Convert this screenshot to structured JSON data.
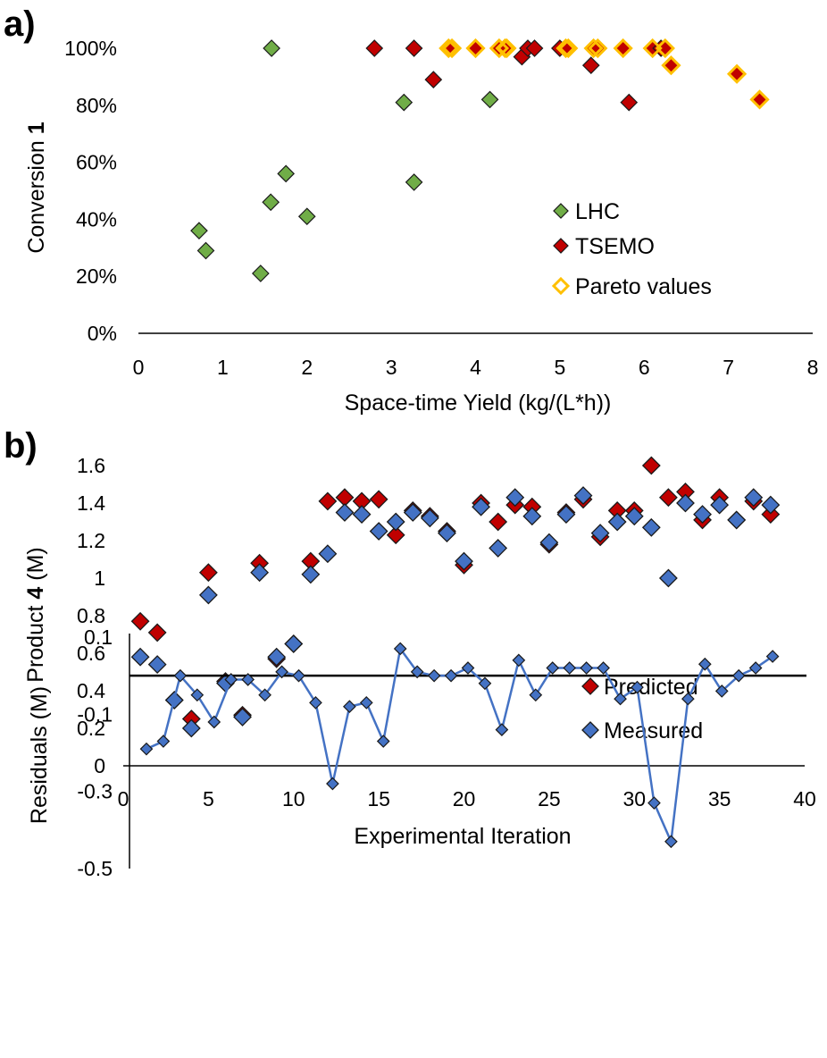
{
  "chart_data": [
    {
      "panel": "a)",
      "type": "scatter",
      "xlabel": "Space-time Yield (kg/(L*h))",
      "ylabel_prefix": "Conversion ",
      "ylabel_bold": "1",
      "xlim": [
        0,
        8
      ],
      "ylim": [
        0,
        1
      ],
      "x_ticks": [
        0,
        1,
        2,
        3,
        4,
        5,
        6,
        7,
        8
      ],
      "y_ticks": [
        0,
        0.2,
        0.4,
        0.6,
        0.8,
        1.0
      ],
      "y_tick_labels": [
        "0%",
        "20%",
        "40%",
        "60%",
        "80%",
        "100%"
      ],
      "legend_position": "right-center",
      "series": [
        {
          "name": "LHC",
          "marker": "diamond",
          "color": "#70AD47",
          "points": [
            [
              0.72,
              0.36
            ],
            [
              0.8,
              0.29
            ],
            [
              1.45,
              0.21
            ],
            [
              1.57,
              0.46
            ],
            [
              1.58,
              1.0
            ],
            [
              1.75,
              0.56
            ],
            [
              2.0,
              0.41
            ],
            [
              3.15,
              0.81
            ],
            [
              3.27,
              0.53
            ],
            [
              4.17,
              0.82
            ]
          ]
        },
        {
          "name": "TSEMO",
          "marker": "diamond",
          "color": "#C00000",
          "points": [
            [
              2.8,
              1.0
            ],
            [
              3.27,
              1.0
            ],
            [
              3.5,
              0.89
            ],
            [
              3.68,
              1.0
            ],
            [
              3.72,
              1.0
            ],
            [
              4.0,
              1.0
            ],
            [
              4.28,
              1.0
            ],
            [
              4.35,
              1.0
            ],
            [
              4.37,
              1.0
            ],
            [
              4.55,
              0.97
            ],
            [
              4.62,
              1.0
            ],
            [
              4.7,
              1.0
            ],
            [
              5.0,
              1.0
            ],
            [
              5.07,
              1.0
            ],
            [
              5.1,
              1.0
            ],
            [
              5.37,
              0.94
            ],
            [
              5.4,
              1.0
            ],
            [
              5.45,
              1.0
            ],
            [
              5.75,
              1.0
            ],
            [
              5.82,
              0.81
            ],
            [
              6.1,
              1.0
            ],
            [
              6.2,
              1.0
            ],
            [
              6.25,
              1.0
            ],
            [
              6.32,
              0.94
            ],
            [
              7.1,
              0.91
            ],
            [
              7.37,
              0.82
            ]
          ]
        },
        {
          "name": "Pareto values",
          "marker": "diamond-open",
          "color": "#FFC000",
          "points": [
            [
              3.68,
              1.0
            ],
            [
              3.72,
              1.0
            ],
            [
              4.0,
              1.0
            ],
            [
              4.28,
              1.0
            ],
            [
              4.35,
              1.0
            ],
            [
              4.37,
              1.0
            ],
            [
              5.07,
              1.0
            ],
            [
              5.1,
              1.0
            ],
            [
              5.4,
              1.0
            ],
            [
              5.45,
              1.0
            ],
            [
              5.75,
              1.0
            ],
            [
              6.1,
              1.0
            ],
            [
              6.25,
              1.0
            ],
            [
              6.32,
              0.94
            ],
            [
              7.1,
              0.91
            ],
            [
              7.37,
              0.82
            ]
          ]
        }
      ]
    },
    {
      "panel": "b)",
      "type": "scatter",
      "xlabel": "Experimental Iteration",
      "ylabel_prefix": "Product ",
      "ylabel_bold": "4",
      "ylabel_suffix": " (M)",
      "xlim": [
        0,
        40
      ],
      "ylim": [
        0,
        1.6
      ],
      "x_ticks": [
        0,
        5,
        10,
        15,
        20,
        25,
        30,
        35,
        40
      ],
      "y_ticks": [
        0,
        0.2,
        0.4,
        0.6,
        0.8,
        1.0,
        1.2,
        1.4,
        1.6
      ],
      "y_tick_labels": [
        "0",
        "0.2",
        "0.4",
        "0.6",
        "0.8",
        "1",
        "1.2",
        "1.4",
        "1.6"
      ],
      "legend_position": "bottom-right",
      "x": [
        1,
        2,
        3,
        4,
        5,
        6,
        7,
        8,
        9,
        10,
        11,
        12,
        13,
        14,
        15,
        16,
        17,
        18,
        19,
        20,
        21,
        22,
        23,
        24,
        25,
        26,
        27,
        28,
        29,
        30,
        31,
        32,
        33,
        34,
        35,
        36,
        37,
        38
      ],
      "series": [
        {
          "name": "Predicted",
          "marker": "diamond",
          "color": "#C00000",
          "values": [
            0.77,
            0.71,
            0.35,
            0.25,
            1.03,
            0.45,
            0.27,
            1.08,
            0.57,
            0.65,
            1.09,
            1.41,
            1.43,
            1.41,
            1.42,
            1.23,
            1.36,
            1.33,
            1.25,
            1.07,
            1.4,
            1.3,
            1.39,
            1.38,
            1.18,
            1.35,
            1.42,
            1.22,
            1.36,
            1.36,
            1.6,
            1.43,
            1.46,
            1.31,
            1.43,
            1.31,
            1.41,
            1.34
          ]
        },
        {
          "name": "Measured",
          "marker": "diamond",
          "color": "#4472C4",
          "values": [
            0.58,
            0.54,
            0.35,
            0.2,
            0.91,
            0.44,
            0.26,
            1.03,
            0.58,
            0.65,
            1.02,
            1.13,
            1.35,
            1.34,
            1.25,
            1.3,
            1.35,
            1.32,
            1.24,
            1.09,
            1.38,
            1.16,
            1.43,
            1.33,
            1.19,
            1.34,
            1.44,
            1.24,
            1.3,
            1.33,
            1.27,
            1.0,
            1.4,
            1.34,
            1.39,
            1.31,
            1.43,
            1.39
          ]
        }
      ]
    },
    {
      "type": "line",
      "ylabel": "Residuals (M)",
      "ylim": [
        -0.5,
        0.1
      ],
      "y_ticks": [
        -0.5,
        -0.3,
        -0.1,
        0.1
      ],
      "y_tick_labels": [
        "-0.5",
        "-0.3",
        "-0.1",
        "0.1"
      ],
      "zero_line": true,
      "x": [
        1,
        2,
        3,
        4,
        5,
        6,
        7,
        8,
        9,
        10,
        11,
        12,
        13,
        14,
        15,
        16,
        17,
        18,
        19,
        20,
        21,
        22,
        23,
        24,
        25,
        26,
        27,
        28,
        29,
        30,
        31,
        32,
        33,
        34,
        35,
        36,
        37,
        38
      ],
      "series": [
        {
          "name": "Residuals",
          "marker": "diamond",
          "color": "#4472C4",
          "values": [
            -0.19,
            -0.17,
            0.0,
            -0.05,
            -0.12,
            -0.01,
            -0.01,
            -0.05,
            0.01,
            0.0,
            -0.07,
            -0.28,
            -0.08,
            -0.07,
            -0.17,
            0.07,
            0.01,
            0.0,
            0.0,
            0.02,
            -0.02,
            -0.14,
            0.04,
            -0.05,
            0.02,
            0.02,
            0.02,
            0.02,
            -0.06,
            -0.03,
            -0.33,
            -0.43,
            -0.06,
            0.03,
            -0.04,
            0.0,
            0.02,
            0.05
          ]
        }
      ]
    }
  ]
}
